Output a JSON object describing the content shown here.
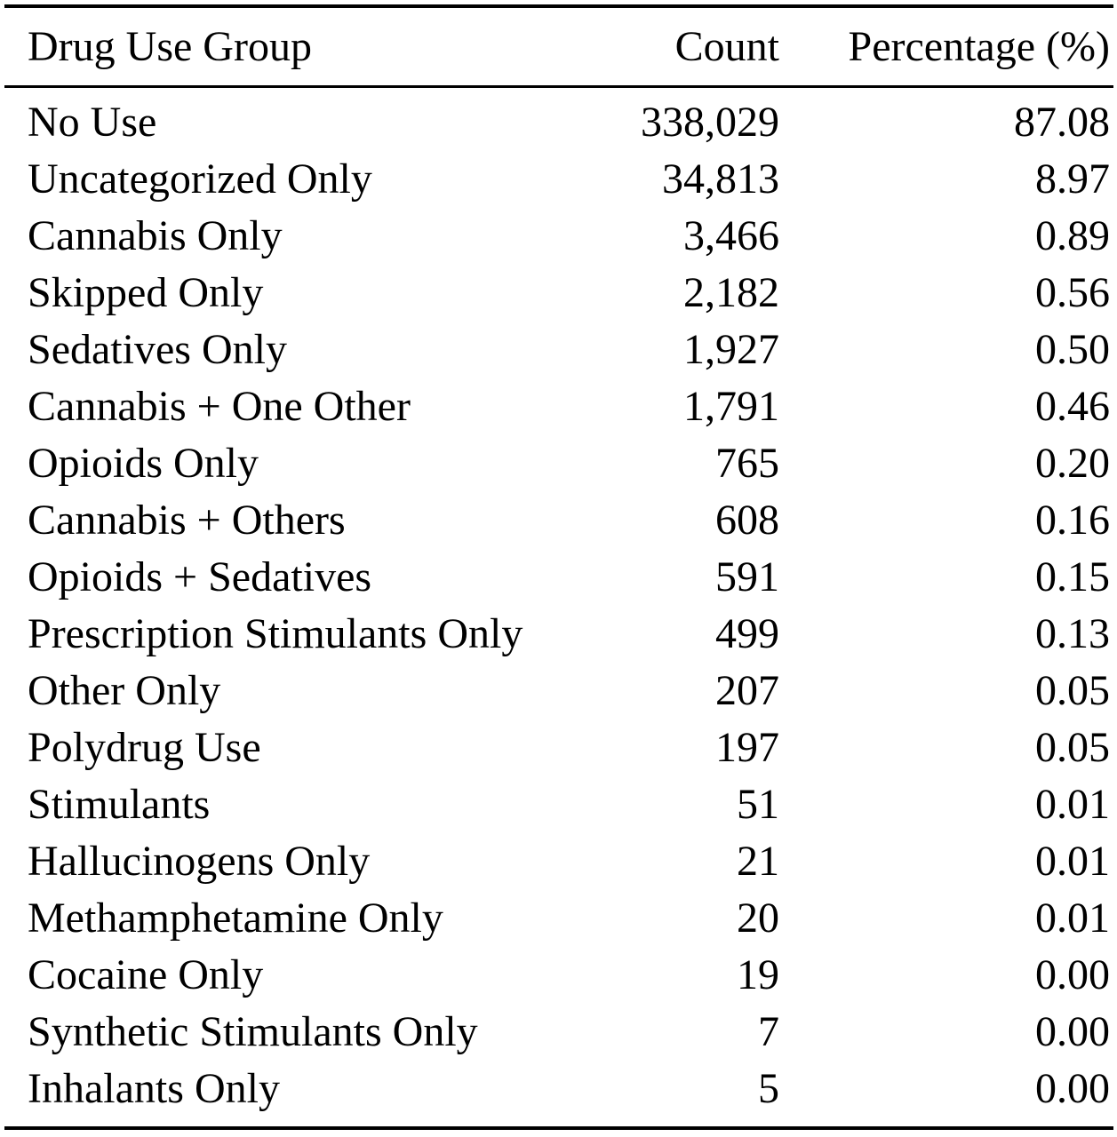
{
  "headers": {
    "group": "Drug Use Group",
    "count": "Count",
    "percentage": "Percentage (%)"
  },
  "rows": [
    {
      "group": "No Use",
      "count": "338,029",
      "percentage": "87.08"
    },
    {
      "group": "Uncategorized Only",
      "count": "34,813",
      "percentage": "8.97"
    },
    {
      "group": "Cannabis Only",
      "count": "3,466",
      "percentage": "0.89"
    },
    {
      "group": "Skipped Only",
      "count": "2,182",
      "percentage": "0.56"
    },
    {
      "group": "Sedatives Only",
      "count": "1,927",
      "percentage": "0.50"
    },
    {
      "group": "Cannabis + One Other",
      "count": "1,791",
      "percentage": "0.46"
    },
    {
      "group": "Opioids Only",
      "count": "765",
      "percentage": "0.20"
    },
    {
      "group": "Cannabis + Others",
      "count": "608",
      "percentage": "0.16"
    },
    {
      "group": "Opioids + Sedatives",
      "count": "591",
      "percentage": "0.15"
    },
    {
      "group": "Prescription Stimulants Only",
      "count": "499",
      "percentage": "0.13"
    },
    {
      "group": "Other Only",
      "count": "207",
      "percentage": "0.05"
    },
    {
      "group": "Polydrug Use",
      "count": "197",
      "percentage": "0.05"
    },
    {
      "group": "Stimulants",
      "count": "51",
      "percentage": "0.01"
    },
    {
      "group": "Hallucinogens Only",
      "count": "21",
      "percentage": "0.01"
    },
    {
      "group": "Methamphetamine Only",
      "count": "20",
      "percentage": "0.01"
    },
    {
      "group": "Cocaine Only",
      "count": "19",
      "percentage": "0.00"
    },
    {
      "group": "Synthetic Stimulants Only",
      "count": "7",
      "percentage": "0.00"
    },
    {
      "group": "Inhalants Only",
      "count": "5",
      "percentage": "0.00"
    }
  ]
}
